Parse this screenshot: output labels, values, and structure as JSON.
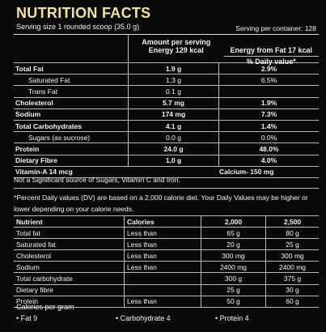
{
  "header": {
    "title": "NUTRITION FACTS",
    "serving_size": "Serving size 1 rounded scoop (35.0 g)",
    "servings": "Serving per container: 128"
  },
  "main_table": {
    "amount_heading": "Amount per serving",
    "energy": "Energy 129  kcal",
    "energy_fat": "Energy from Fat 17 kcal",
    "dv_heading": "% Daily value*",
    "rows": [
      {
        "name": "Total Fat",
        "amount": "1.9 g",
        "dv": "2.9%"
      },
      {
        "name": "Saturated Fat",
        "amount": "1.3 g",
        "dv": "6.5%",
        "sub": true
      },
      {
        "name": "Trans Fat",
        "amount": "0.1 g",
        "sub": true
      },
      {
        "name": "Cholesterol",
        "amount": "5.7 mg",
        "dv": "1.9%"
      },
      {
        "name": "Sodium",
        "amount": "174 mg",
        "dv": "7.3%"
      },
      {
        "name": "Total Carbohydrates",
        "amount": "4.1 g",
        "dv": "1.4%"
      },
      {
        "name": "Sugars (as sucrose)",
        "amount": "0.0 g",
        "dv": "0.0%",
        "sub": true
      },
      {
        "name": "Protein",
        "amount": "24.0 g",
        "dv": "48.0%"
      },
      {
        "name": "Dietary Fibre",
        "amount": "1.0 g",
        "dv": "4.0%"
      }
    ],
    "vitamin": "Vitamin-A  14 mcg",
    "calcium": "Calcium- 150 mg"
  },
  "notes": {
    "not_significant": "Not a Significant source of Sugars, Vitamin C and Iron.",
    "percent_note": "*Percent Daily values (DV) are based on a 2,000 calorie diet. Your Daily Values may be higher or lower depending on your calorie needs."
  },
  "dv_table": {
    "header": [
      "Nutrient",
      "Calories",
      "2,000",
      "2,500"
    ],
    "rows": [
      [
        "Total fat",
        "Less than",
        "65 g",
        "80 g"
      ],
      [
        "Saturated fat",
        "Less than",
        "20 g",
        "25 g"
      ],
      [
        "Cholesterol",
        "Less than",
        "300 mg",
        "300 mg"
      ],
      [
        "Sodium",
        "Less than",
        "2400 mg",
        "2400 mg"
      ],
      [
        "Total carbohydrate",
        null,
        "300 g",
        "375 g"
      ],
      [
        "Dietary fibre",
        null,
        "25 g",
        "30 g"
      ],
      [
        "Protein",
        "Less than",
        "50 g",
        "60 g"
      ]
    ]
  },
  "calories_per_gram": {
    "heading": "Calories per gram",
    "items": [
      "• Fat 9",
      "• Carbohydrate  4",
      "• Protein  4"
    ]
  }
}
